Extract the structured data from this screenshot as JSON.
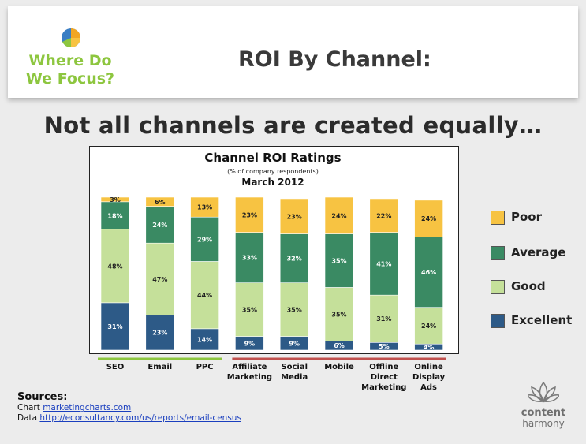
{
  "header": {
    "logo_text": "Where Do We Focus?",
    "title": "ROI By Channel:"
  },
  "subtitle": "Not all channels are created equally…",
  "chart_data": {
    "type": "bar",
    "stacked": true,
    "percent": true,
    "title": "Channel ROI Ratings",
    "subtitle": "(% of company respondents)",
    "date": "March 2012",
    "categories": [
      "SEO",
      "Email",
      "PPC",
      "Affiliate Marketing",
      "Social Media",
      "Mobile",
      "Offline Direct Marketing",
      "Online Display Ads"
    ],
    "category_labels": [
      [
        "SEO"
      ],
      [
        "Email"
      ],
      [
        "PPC"
      ],
      [
        "Affiliate",
        "Marketing"
      ],
      [
        "Social",
        "Media"
      ],
      [
        "Mobile"
      ],
      [
        "Offline",
        "Direct",
        "Marketing"
      ],
      [
        "Online",
        "Display",
        "Ads"
      ]
    ],
    "series": [
      {
        "name": "Excellent",
        "color": "#2d5a87",
        "values": [
          31,
          23,
          14,
          9,
          9,
          6,
          5,
          4
        ]
      },
      {
        "name": "Good",
        "color": "#c5e09a",
        "values": [
          48,
          47,
          44,
          35,
          35,
          35,
          31,
          24
        ]
      },
      {
        "name": "Average",
        "color": "#3a8a63",
        "values": [
          18,
          24,
          29,
          33,
          32,
          35,
          41,
          46
        ]
      },
      {
        "name": "Poor",
        "color": "#f7c342",
        "values": [
          3,
          6,
          13,
          23,
          23,
          24,
          22,
          24
        ]
      }
    ],
    "ylim": [
      0,
      100
    ],
    "grid": false,
    "legend_placement": "right",
    "group_underlines": [
      {
        "from": 0,
        "to": 2,
        "color": "#8dc63f"
      },
      {
        "from": 3,
        "to": 7,
        "color": "#c0504d"
      }
    ]
  },
  "legend": [
    {
      "label": "Poor",
      "color": "#f7c342"
    },
    {
      "label": "Average",
      "color": "#3a8a63"
    },
    {
      "label": "Good",
      "color": "#c5e09a"
    },
    {
      "label": "Excellent",
      "color": "#2d5a87"
    }
  ],
  "sources": {
    "title": "Sources:",
    "chart_prefix": "Chart",
    "chart_link": "marketingcharts.com",
    "data_prefix": "Data",
    "data_link": "http://econsultancy.com/us/reports/email-census"
  },
  "brand": {
    "line1": "content",
    "line2": "harmony"
  }
}
